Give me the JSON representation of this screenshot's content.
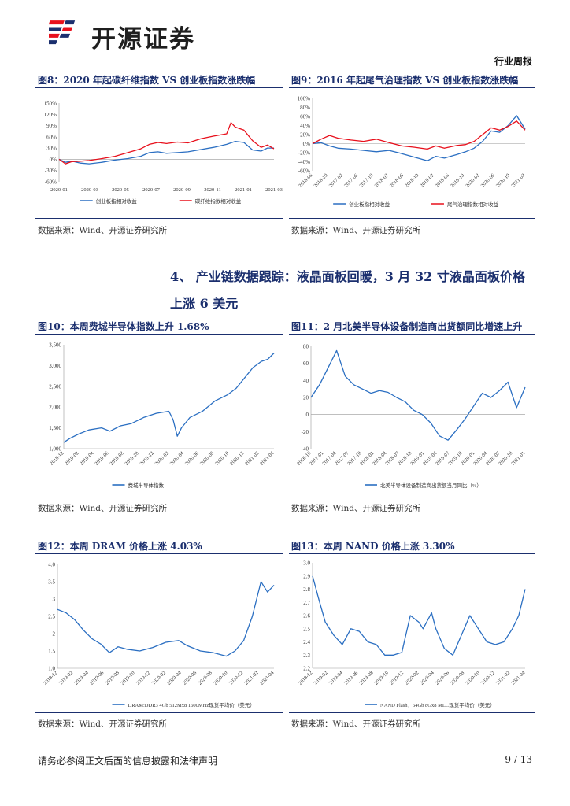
{
  "header": {
    "brand": "开源证券",
    "doc_type": "行业周报"
  },
  "section": {
    "title_line1": "4、 产业链数据跟踪：液晶面板回暖，3 月 32 寸液晶面板价格",
    "title_line2": "上涨 6 美元"
  },
  "source_text": "数据来源：Wind、开源证券研究所",
  "footer": {
    "disclaimer": "请务必参阅正文后面的信息披露和法律声明",
    "page": "9 / 13"
  },
  "colors": {
    "blue": "#2b6fc2",
    "red": "#e8101c",
    "navy": "#1b2f6e"
  },
  "figures": {
    "fig8": {
      "title": "图8：2020 年起碳纤维指数 VS 创业板指数涨跌幅"
    },
    "fig9": {
      "title": "图9：2016 年起尾气治理指数 VS 创业板指数涨跌幅"
    },
    "fig10": {
      "title": "图10：本周费城半导体指数上升 1.68%"
    },
    "fig11": {
      "title": "图11：2 月北美半导体设备制造商出货额同比增速上升"
    },
    "fig12": {
      "title": "图12：本周 DRAM 价格上涨 4.03%"
    },
    "fig13": {
      "title": "图13：本周 NAND 价格上涨 3.30%"
    }
  },
  "chart_data": [
    {
      "id": "fig8",
      "type": "line",
      "ylim": [
        -60,
        150
      ],
      "yticks": [
        "150%",
        "120%",
        "90%",
        "60%",
        "30%",
        "0%",
        "-30%",
        "-60%"
      ],
      "xticks": [
        "2020-01",
        "2020-03",
        "2020-05",
        "2020-07",
        "2020-09",
        "2020-11",
        "2021-01",
        "2021-03"
      ],
      "series": [
        {
          "name": "创业板指相对收益",
          "color": "#2b6fc2",
          "x": [
            0,
            0.03,
            0.06,
            0.1,
            0.14,
            0.2,
            0.26,
            0.32,
            0.38,
            0.42,
            0.46,
            0.5,
            0.55,
            0.6,
            0.66,
            0.72,
            0.78,
            0.82,
            0.86,
            0.9,
            0.94,
            0.97,
            1.0
          ],
          "y": [
            0,
            -8,
            -5,
            -10,
            -12,
            -8,
            -2,
            2,
            8,
            18,
            20,
            16,
            18,
            20,
            26,
            32,
            40,
            48,
            45,
            25,
            22,
            30,
            30
          ]
        },
        {
          "name": "碳纤维指数相对收益",
          "color": "#e8101c",
          "x": [
            0,
            0.03,
            0.06,
            0.1,
            0.14,
            0.2,
            0.26,
            0.32,
            0.38,
            0.42,
            0.46,
            0.5,
            0.55,
            0.6,
            0.66,
            0.72,
            0.78,
            0.8,
            0.82,
            0.86,
            0.9,
            0.94,
            0.97,
            1.0
          ],
          "y": [
            0,
            -12,
            -6,
            -5,
            -3,
            2,
            8,
            18,
            28,
            40,
            45,
            42,
            46,
            44,
            55,
            62,
            68,
            98,
            86,
            78,
            50,
            32,
            38,
            28
          ]
        }
      ]
    },
    {
      "id": "fig9",
      "type": "line",
      "ylim": [
        -60,
        100
      ],
      "yticks": [
        "100%",
        "80%",
        "60%",
        "40%",
        "20%",
        "0%",
        "-20%",
        "-40%",
        "-60%"
      ],
      "xticks": [
        "2016-06",
        "2016-10",
        "2017-02",
        "2017-06",
        "2017-10",
        "2018-02",
        "2018-06",
        "2018-10",
        "2019-02",
        "2019-06",
        "2019-10",
        "2020-02",
        "2020-06",
        "2020-10",
        "2021-02"
      ],
      "series": [
        {
          "name": "创业板指相对收益",
          "color": "#2b6fc2",
          "x": [
            0,
            0.04,
            0.08,
            0.12,
            0.18,
            0.24,
            0.3,
            0.36,
            0.42,
            0.48,
            0.54,
            0.58,
            0.62,
            0.68,
            0.72,
            0.76,
            0.8,
            0.84,
            0.88,
            0.92,
            0.96,
            1.0
          ],
          "y": [
            0,
            2,
            -5,
            -10,
            -12,
            -15,
            -18,
            -15,
            -22,
            -30,
            -38,
            -28,
            -32,
            -24,
            -18,
            -10,
            5,
            28,
            25,
            40,
            62,
            32
          ]
        },
        {
          "name": "尾气治理指数相对收益",
          "color": "#e8101c",
          "x": [
            0,
            0.04,
            0.08,
            0.12,
            0.18,
            0.24,
            0.3,
            0.36,
            0.42,
            0.48,
            0.54,
            0.58,
            0.62,
            0.68,
            0.72,
            0.76,
            0.8,
            0.84,
            0.88,
            0.92,
            0.96,
            1.0
          ],
          "y": [
            0,
            10,
            18,
            12,
            8,
            5,
            10,
            2,
            -5,
            -8,
            -12,
            -5,
            -10,
            -4,
            -2,
            5,
            20,
            35,
            30,
            38,
            50,
            30
          ]
        }
      ]
    },
    {
      "id": "fig10",
      "type": "line",
      "ylim": [
        1000,
        3500
      ],
      "yticks": [
        "3,500",
        "3,000",
        "2,500",
        "2,000",
        "1,500",
        "1,000"
      ],
      "xticks": [
        "2018-12",
        "2019-02",
        "2019-04",
        "2019-06",
        "2019-08",
        "2019-10",
        "2019-12",
        "2020-02",
        "2020-04",
        "2020-06",
        "2020-08",
        "2020-10",
        "2020-12",
        "2021-02",
        "2021-04"
      ],
      "series": [
        {
          "name": "费城半导体指数",
          "color": "#2b6fc2",
          "x": [
            0,
            0.03,
            0.07,
            0.12,
            0.18,
            0.22,
            0.27,
            0.32,
            0.38,
            0.44,
            0.5,
            0.52,
            0.54,
            0.56,
            0.6,
            0.66,
            0.72,
            0.78,
            0.82,
            0.86,
            0.9,
            0.94,
            0.97,
            1.0
          ],
          "y": [
            1150,
            1250,
            1350,
            1450,
            1500,
            1420,
            1550,
            1600,
            1750,
            1850,
            1900,
            1700,
            1300,
            1500,
            1750,
            1900,
            2150,
            2300,
            2450,
            2700,
            2950,
            3100,
            3150,
            3300
          ]
        }
      ]
    },
    {
      "id": "fig11",
      "type": "line",
      "ylim": [
        -40,
        80
      ],
      "yticks": [
        "80",
        "60",
        "40",
        "20",
        "0",
        "-20",
        "-40"
      ],
      "xticks": [
        "2016-10",
        "2017-01",
        "2017-04",
        "2017-07",
        "2017-10",
        "2018-01",
        "2018-04",
        "2018-07",
        "2018-10",
        "2019-01",
        "2019-04",
        "2019-07",
        "2019-10",
        "2020-01",
        "2020-04",
        "2020-07",
        "2020-10",
        "2021-01"
      ],
      "series": [
        {
          "name": "北美半导体设备制造商出货额当月同比（%）",
          "color": "#2b6fc2",
          "x": [
            0,
            0.04,
            0.08,
            0.12,
            0.16,
            0.2,
            0.24,
            0.28,
            0.32,
            0.36,
            0.4,
            0.44,
            0.48,
            0.52,
            0.56,
            0.6,
            0.64,
            0.68,
            0.72,
            0.76,
            0.8,
            0.84,
            0.88,
            0.92,
            0.96,
            1.0
          ],
          "y": [
            20,
            35,
            55,
            75,
            45,
            35,
            30,
            25,
            28,
            26,
            20,
            15,
            5,
            0,
            -10,
            -25,
            -30,
            -18,
            -5,
            10,
            25,
            20,
            28,
            38,
            8,
            32
          ]
        }
      ]
    },
    {
      "id": "fig12",
      "type": "line",
      "ylim": [
        1.0,
        4.0
      ],
      "yticks": [
        "4.0",
        "3.5",
        "3",
        "2.5",
        "2",
        "1.5",
        "1.0"
      ],
      "xticks": [
        "2018-12",
        "2019-02",
        "2019-04",
        "2019-06",
        "2019-08",
        "2019-10",
        "2019-12",
        "2020-02",
        "2020-04",
        "2020-06",
        "2020-08",
        "2020-10",
        "2020-12",
        "2021-02",
        "2021-04"
      ],
      "series": [
        {
          "name": "DRAM:DDR3 4Gb 512Mx8 1600MHz现货平均价（美元）",
          "color": "#2b6fc2",
          "x": [
            0,
            0.04,
            0.08,
            0.12,
            0.16,
            0.2,
            0.24,
            0.28,
            0.32,
            0.38,
            0.44,
            0.5,
            0.56,
            0.6,
            0.66,
            0.72,
            0.78,
            0.82,
            0.86,
            0.9,
            0.94,
            0.97,
            1.0
          ],
          "y": [
            2.7,
            2.6,
            2.4,
            2.1,
            1.85,
            1.7,
            1.45,
            1.62,
            1.55,
            1.5,
            1.6,
            1.75,
            1.8,
            1.65,
            1.5,
            1.45,
            1.35,
            1.5,
            1.8,
            2.5,
            3.5,
            3.2,
            3.4
          ]
        }
      ]
    },
    {
      "id": "fig13",
      "type": "line",
      "ylim": [
        2.2,
        3.0
      ],
      "yticks": [
        "3.0",
        "2.9",
        "2.8",
        "2.7",
        "2.6",
        "2.5",
        "2.4",
        "2.3",
        "2.2"
      ],
      "xticks": [
        "2018-12",
        "2019-02",
        "2019-04",
        "2019-06",
        "2019-08",
        "2019-10",
        "2019-12",
        "2020-02",
        "2020-04",
        "2020-06",
        "2020-08",
        "2020-10",
        "2020-12",
        "2021-02",
        "2021-04"
      ],
      "series": [
        {
          "name": "NAND Flash：64Gb 8Gx8 MLC现货平均价（美元）",
          "color": "#2b6fc2",
          "x": [
            0,
            0.03,
            0.06,
            0.1,
            0.14,
            0.18,
            0.22,
            0.26,
            0.3,
            0.34,
            0.38,
            0.42,
            0.46,
            0.5,
            0.52,
            0.56,
            0.58,
            0.62,
            0.66,
            0.7,
            0.74,
            0.78,
            0.82,
            0.86,
            0.9,
            0.94,
            0.97,
            1.0
          ],
          "y": [
            2.9,
            2.72,
            2.55,
            2.45,
            2.38,
            2.5,
            2.48,
            2.4,
            2.38,
            2.3,
            2.3,
            2.32,
            2.6,
            2.55,
            2.5,
            2.62,
            2.5,
            2.35,
            2.3,
            2.45,
            2.6,
            2.5,
            2.4,
            2.38,
            2.4,
            2.5,
            2.6,
            2.8
          ]
        }
      ]
    }
  ]
}
